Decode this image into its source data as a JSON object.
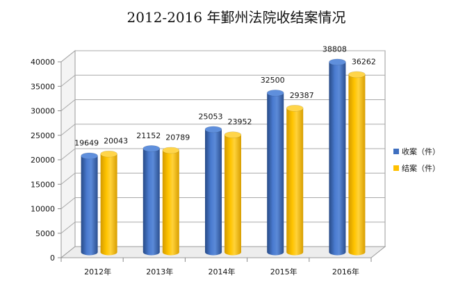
{
  "chart_data": {
    "type": "bar",
    "title": "2012-2016 年鄞州法院收结案情况",
    "categories": [
      "2012年",
      "2013年",
      "2014年",
      "2015年",
      "2016年"
    ],
    "series": [
      {
        "name": "收案（件）",
        "values": [
          19649,
          21152,
          25053,
          32500,
          38808
        ],
        "color": "#3f6fbf"
      },
      {
        "name": "结案（件）",
        "values": [
          20043,
          20789,
          23952,
          29387,
          36262
        ],
        "color": "#ffc000"
      }
    ],
    "ylim": [
      0,
      40000
    ],
    "yticks": [
      "0",
      "5000",
      "10000",
      "15000",
      "20000",
      "25000",
      "30000",
      "35000",
      "40000"
    ],
    "grid": true,
    "legend_position": "right",
    "style": "3d-cylinder"
  }
}
